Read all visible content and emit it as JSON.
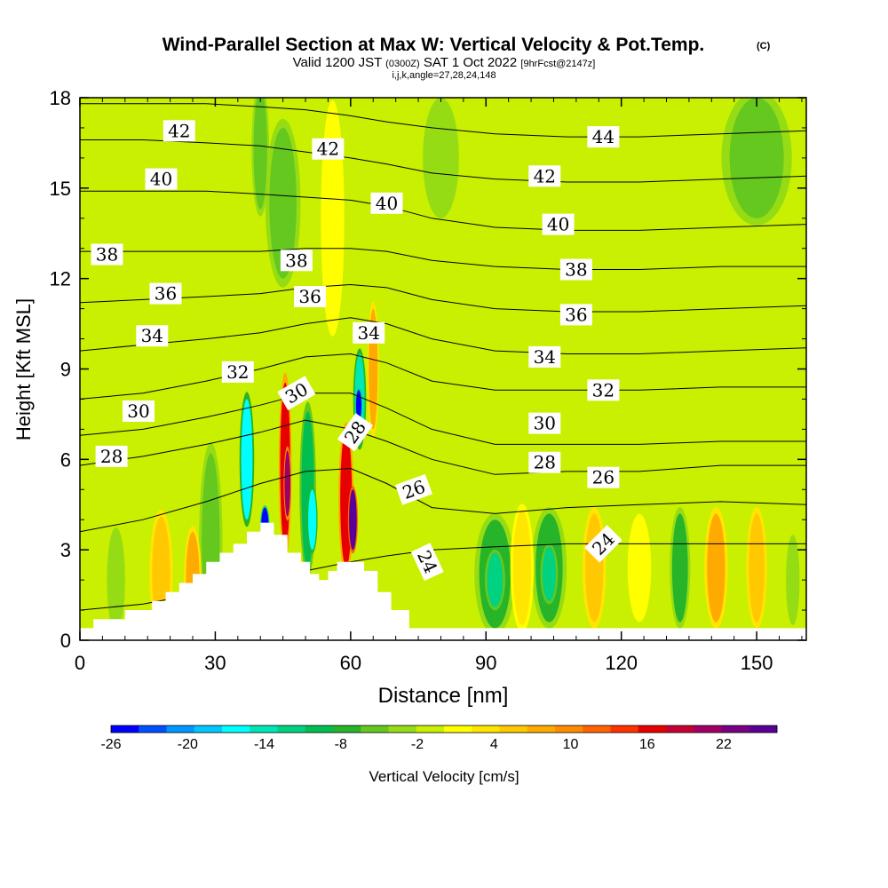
{
  "chart_data": {
    "type": "heatmap",
    "title": "Wind-Parallel Section at Max W: Vertical Velocity & Pot.Temp.",
    "title_mark": "(C)",
    "subtitle_parts": {
      "valid_prefix": "Valid 1200 JST",
      "utc": "(0300Z)",
      "valid_date": "SAT 1 Oct 2022",
      "forecast": "[9hrFcst@2147z]"
    },
    "indices": "i,j,k,angle=27,28,24,148",
    "xlabel": "Distance [nm]",
    "ylabel": "Height [Kft MSL]",
    "xlim": [
      0,
      161
    ],
    "ylim": [
      0,
      18
    ],
    "x_ticks": [
      "0",
      "30",
      "60",
      "90",
      "120",
      "150"
    ],
    "y_ticks": [
      "0",
      "3",
      "6",
      "9",
      "12",
      "15",
      "18"
    ],
    "colorbar": {
      "label": "Vertical Velocity [cm/s]",
      "tick_labels": [
        "-26",
        "-20",
        "-14",
        "-8",
        "-2",
        "4",
        "10",
        "16",
        "22"
      ],
      "colors": [
        "#0000ff",
        "#0050ff",
        "#0096ff",
        "#00c8ff",
        "#00ffff",
        "#00e6b4",
        "#00d282",
        "#00be50",
        "#28b428",
        "#64c81e",
        "#96dc14",
        "#c8f000",
        "#ffff00",
        "#ffe600",
        "#ffc800",
        "#ffaa00",
        "#ff8c00",
        "#ff6400",
        "#ff3200",
        "#e60000",
        "#c80032",
        "#a00064",
        "#780082",
        "#5a0096"
      ]
    },
    "terrain_kft": [
      [
        0,
        0.4
      ],
      [
        3,
        0.7
      ],
      [
        10,
        1.0
      ],
      [
        16,
        1.3
      ],
      [
        19,
        1.6
      ],
      [
        22,
        1.9
      ],
      [
        25,
        2.2
      ],
      [
        28,
        2.6
      ],
      [
        31,
        2.9
      ],
      [
        34,
        3.2
      ],
      [
        37,
        3.6
      ],
      [
        40,
        3.9
      ],
      [
        43,
        3.5
      ],
      [
        46,
        2.9
      ],
      [
        49,
        2.6
      ],
      [
        51,
        2.2
      ],
      [
        53,
        2.0
      ],
      [
        55,
        2.3
      ],
      [
        57,
        2.6
      ],
      [
        61,
        2.6
      ],
      [
        63,
        2.3
      ],
      [
        66,
        1.6
      ],
      [
        69,
        1.0
      ],
      [
        73,
        0.4
      ],
      [
        161,
        0.4
      ]
    ],
    "theta_contours": [
      {
        "label": "24",
        "y": [
          1.0,
          1.2,
          1.6,
          2.0,
          2.3,
          2.6,
          2.8,
          3.0,
          3.1,
          3.2,
          3.2,
          3.2,
          3.2
        ]
      },
      {
        "label": "26",
        "y": [
          3.6,
          4.0,
          4.6,
          5.2,
          5.6,
          5.7,
          5.2,
          4.4,
          4.2,
          4.4,
          4.5,
          4.6,
          4.5
        ]
      },
      {
        "label": "28",
        "y": [
          5.8,
          6.1,
          6.5,
          6.9,
          7.3,
          7.0,
          6.6,
          6.0,
          5.5,
          5.6,
          5.6,
          5.8,
          5.8
        ]
      },
      {
        "label": "30",
        "y": [
          6.8,
          7.0,
          7.4,
          7.8,
          8.2,
          8.2,
          7.7,
          7.0,
          6.5,
          6.5,
          6.5,
          6.6,
          6.6
        ]
      },
      {
        "label": "32",
        "y": [
          8.0,
          8.2,
          8.6,
          9.0,
          9.4,
          9.5,
          9.2,
          8.6,
          8.3,
          8.3,
          8.3,
          8.4,
          8.4
        ]
      },
      {
        "label": "34",
        "y": [
          9.6,
          9.8,
          10.0,
          10.2,
          10.5,
          10.7,
          10.5,
          10.0,
          9.6,
          9.5,
          9.5,
          9.6,
          9.7
        ]
      },
      {
        "label": "36",
        "y": [
          11.2,
          11.3,
          11.4,
          11.5,
          11.7,
          11.8,
          11.7,
          11.3,
          11.0,
          10.9,
          10.9,
          11.0,
          11.1
        ]
      },
      {
        "label": "38",
        "y": [
          12.9,
          12.9,
          12.9,
          12.9,
          13.0,
          13.0,
          12.9,
          12.6,
          12.4,
          12.3,
          12.3,
          12.4,
          12.4
        ]
      },
      {
        "label": "40",
        "y": [
          14.9,
          14.9,
          14.9,
          14.8,
          14.7,
          14.6,
          14.4,
          14.0,
          13.7,
          13.6,
          13.6,
          13.7,
          13.8
        ]
      },
      {
        "label": "42",
        "y": [
          16.6,
          16.6,
          16.5,
          16.4,
          16.2,
          16.0,
          15.8,
          15.5,
          15.3,
          15.2,
          15.2,
          15.3,
          15.4
        ]
      },
      {
        "label": "44",
        "y": [
          17.8,
          17.8,
          17.8,
          17.7,
          17.6,
          17.4,
          17.2,
          17.0,
          16.8,
          16.7,
          16.7,
          16.8,
          16.9
        ]
      }
    ],
    "contour_x": [
      0,
      14,
      28,
      40,
      50,
      60,
      68,
      78,
      92,
      108,
      124,
      142,
      161
    ],
    "contour_labels": [
      {
        "text": "42",
        "x": 22,
        "y": 16.9,
        "rotate": 0
      },
      {
        "text": "42",
        "x": 55,
        "y": 16.3,
        "rotate": 0
      },
      {
        "text": "44",
        "x": 116,
        "y": 16.7,
        "rotate": 0
      },
      {
        "text": "40",
        "x": 18,
        "y": 15.3,
        "rotate": 0
      },
      {
        "text": "42",
        "x": 103,
        "y": 15.4,
        "rotate": 0
      },
      {
        "text": "40",
        "x": 68,
        "y": 14.5,
        "rotate": 0
      },
      {
        "text": "40",
        "x": 106,
        "y": 13.8,
        "rotate": 0
      },
      {
        "text": "38",
        "x": 6,
        "y": 12.8,
        "rotate": 0
      },
      {
        "text": "38",
        "x": 48,
        "y": 12.6,
        "rotate": 0
      },
      {
        "text": "38",
        "x": 110,
        "y": 12.3,
        "rotate": 0
      },
      {
        "text": "36",
        "x": 19,
        "y": 11.5,
        "rotate": 0
      },
      {
        "text": "36",
        "x": 51,
        "y": 11.4,
        "rotate": 0
      },
      {
        "text": "36",
        "x": 110,
        "y": 10.8,
        "rotate": 0
      },
      {
        "text": "34",
        "x": 16,
        "y": 10.1,
        "rotate": 0
      },
      {
        "text": "34",
        "x": 64,
        "y": 10.2,
        "rotate": 0
      },
      {
        "text": "34",
        "x": 103,
        "y": 9.4,
        "rotate": 0
      },
      {
        "text": "32",
        "x": 35,
        "y": 8.9,
        "rotate": 0
      },
      {
        "text": "32",
        "x": 116,
        "y": 8.3,
        "rotate": 0
      },
      {
        "text": "30",
        "x": 48,
        "y": 8.2,
        "rotate": 30
      },
      {
        "text": "30",
        "x": 13,
        "y": 7.6,
        "rotate": 0
      },
      {
        "text": "30",
        "x": 103,
        "y": 7.2,
        "rotate": 0
      },
      {
        "text": "28",
        "x": 61,
        "y": 6.9,
        "rotate": 55
      },
      {
        "text": "28",
        "x": 7,
        "y": 6.1,
        "rotate": 0
      },
      {
        "text": "28",
        "x": 103,
        "y": 5.9,
        "rotate": 0
      },
      {
        "text": "26",
        "x": 74,
        "y": 5.0,
        "rotate": 20
      },
      {
        "text": "26",
        "x": 116,
        "y": 5.4,
        "rotate": 0
      },
      {
        "text": "24",
        "x": 77,
        "y": 2.6,
        "rotate": -65
      },
      {
        "text": "24",
        "x": 116,
        "y": 3.2,
        "rotate": 45
      }
    ],
    "vertical_velocity_cells": [
      {
        "x": 29,
        "y": 3.2,
        "w": 4,
        "h": 6.0,
        "value": -6
      },
      {
        "x": 37,
        "y": 6.0,
        "w": 2.5,
        "h": 4.0,
        "value": -16
      },
      {
        "x": 41,
        "y": 3.8,
        "w": 1.6,
        "h": 1.2,
        "value": -24
      },
      {
        "x": 45.5,
        "y": 5.8,
        "w": 2.2,
        "h": 5.5,
        "value": 16
      },
      {
        "x": 46,
        "y": 5.2,
        "w": 1.3,
        "h": 2.2,
        "value": 20
      },
      {
        "x": 50.5,
        "y": 5.0,
        "w": 2.8,
        "h": 5.2,
        "value": -10
      },
      {
        "x": 51.5,
        "y": 4.0,
        "w": 1.8,
        "h": 2.0,
        "value": -17
      },
      {
        "x": 59,
        "y": 4.7,
        "w": 2.6,
        "h": 4.5,
        "value": 16
      },
      {
        "x": 60.5,
        "y": 4.0,
        "w": 1.7,
        "h": 2.0,
        "value": 24
      },
      {
        "x": 62,
        "y": 8.0,
        "w": 2.2,
        "h": 3.0,
        "value": -14
      },
      {
        "x": 61.8,
        "y": 7.8,
        "w": 1.2,
        "h": 1.0,
        "value": -24
      },
      {
        "x": 65,
        "y": 9.0,
        "w": 2.0,
        "h": 4.0,
        "value": 8
      },
      {
        "x": 45,
        "y": 14.5,
        "w": 6,
        "h": 5,
        "value": -5
      },
      {
        "x": 56,
        "y": 14.0,
        "w": 4,
        "h": 7,
        "value": 2
      },
      {
        "x": 40,
        "y": 16.3,
        "w": 3,
        "h": 4,
        "value": -6
      },
      {
        "x": 92,
        "y": 2.2,
        "w": 7,
        "h": 3.6,
        "value": -8
      },
      {
        "x": 92,
        "y": 2.0,
        "w": 3.5,
        "h": 1.8,
        "value": -13
      },
      {
        "x": 104,
        "y": 2.4,
        "w": 6,
        "h": 3.6,
        "value": -8
      },
      {
        "x": 104,
        "y": 2.2,
        "w": 3,
        "h": 1.8,
        "value": -12
      },
      {
        "x": 98,
        "y": 2.4,
        "w": 4,
        "h": 3.8,
        "value": 4
      },
      {
        "x": 114,
        "y": 2.4,
        "w": 4,
        "h": 3.6,
        "value": 6
      },
      {
        "x": 124,
        "y": 2.4,
        "w": 4,
        "h": 3.2,
        "value": 2
      },
      {
        "x": 133,
        "y": 2.4,
        "w": 3.5,
        "h": 3.6,
        "value": -8
      },
      {
        "x": 141,
        "y": 2.4,
        "w": 4,
        "h": 3.6,
        "value": 7
      },
      {
        "x": 150,
        "y": 2.4,
        "w": 3.5,
        "h": 3.6,
        "value": 6
      },
      {
        "x": 158,
        "y": 2.0,
        "w": 3,
        "h": 3.0,
        "value": -4
      },
      {
        "x": 25,
        "y": 2.0,
        "w": 3,
        "h": 3.2,
        "value": 8
      },
      {
        "x": 18,
        "y": 2.2,
        "w": 4,
        "h": 3.8,
        "value": 5
      },
      {
        "x": 8,
        "y": 2.0,
        "w": 4,
        "h": 3.5,
        "value": -4
      },
      {
        "x": 150,
        "y": 16.0,
        "w": 12,
        "h": 4,
        "value": -5
      },
      {
        "x": 80,
        "y": 16.0,
        "w": 8,
        "h": 4,
        "value": -3
      }
    ]
  }
}
